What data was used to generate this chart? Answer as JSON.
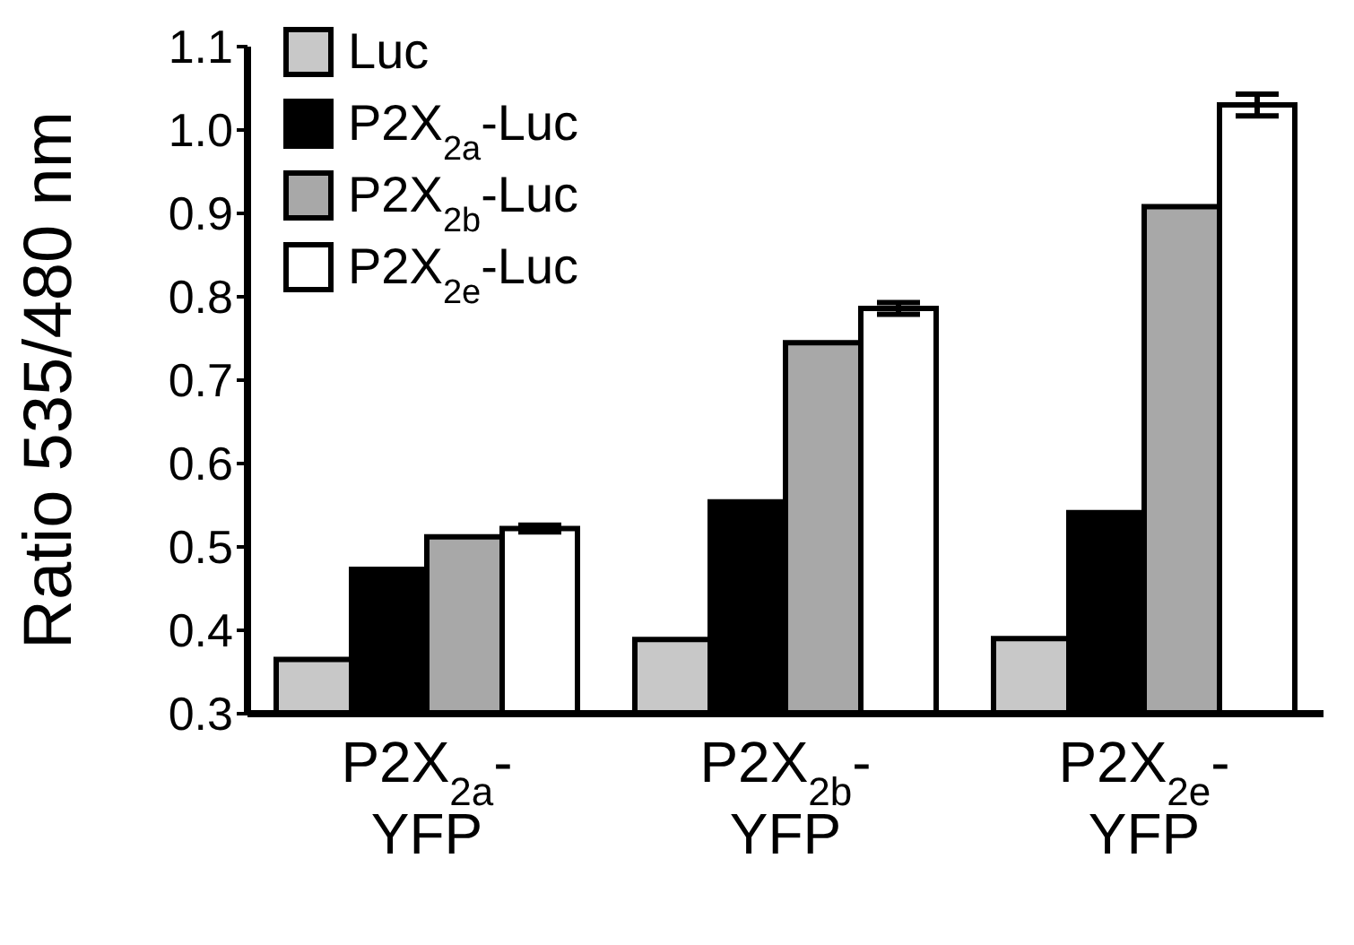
{
  "chart_data": {
    "type": "bar",
    "ylabel": "Ratio 535/480 nm",
    "categories": [
      "P2X$_{2a}$-YFP",
      "P2X$_{2b}$-YFP",
      "P2X$_{2e}$-YFP"
    ],
    "series": [
      {
        "name": "Luc",
        "color": "#c8c8c8",
        "values": [
          0.365,
          0.389,
          0.39
        ]
      },
      {
        "name": "P2X$_{2a}$-Luc",
        "color": "#000000",
        "values": [
          0.473,
          0.554,
          0.541
        ]
      },
      {
        "name": "P2X$_{2b}$-Luc",
        "color": "#a8a8a8",
        "values": [
          0.512,
          0.745,
          0.908
        ]
      },
      {
        "name": "P2X$_{2e}$-Luc",
        "color": "#ffffff",
        "values": [
          0.522,
          0.786,
          1.03
        ],
        "errors": [
          0.004,
          0.007,
          0.013
        ]
      }
    ],
    "ylim": [
      0.3,
      1.1
    ],
    "yticks": [
      0.3,
      0.4,
      0.5,
      0.6,
      0.7,
      0.8,
      0.9,
      {
        "value": 1.0,
        "label": "1.0"
      },
      1.1
    ],
    "legend": "top left",
    "grid": false
  }
}
